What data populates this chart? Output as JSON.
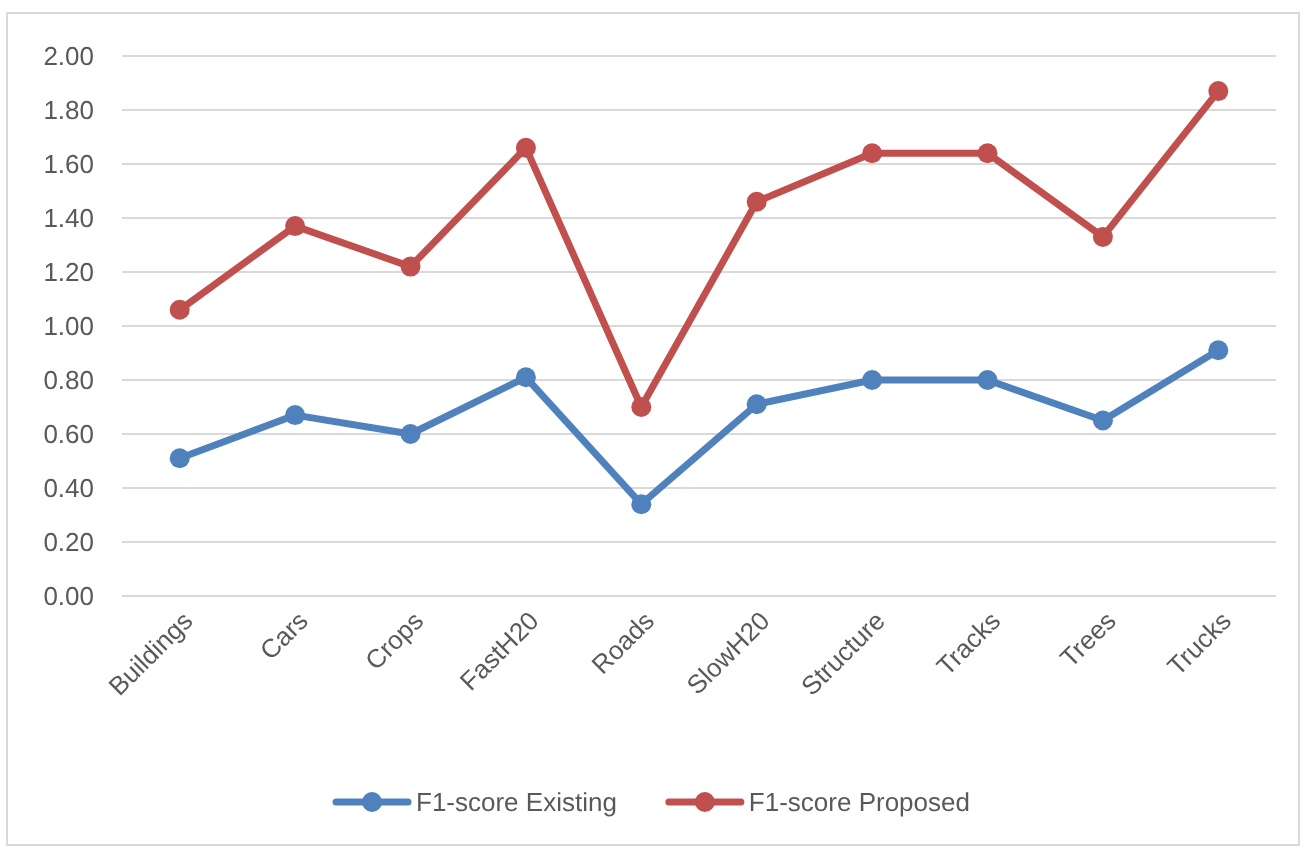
{
  "chart_data": {
    "type": "line",
    "categories": [
      "Buildings",
      "Cars",
      "Crops",
      "FastH20",
      "Roads",
      "SlowH20",
      "Structure",
      "Tracks",
      "Trees",
      "Trucks"
    ],
    "series": [
      {
        "name": "F1-score Existing",
        "color": "#4f81bd",
        "values": [
          0.51,
          0.67,
          0.6,
          0.81,
          0.34,
          0.71,
          0.8,
          0.8,
          0.65,
          0.91
        ]
      },
      {
        "name": "F1-score Proposed",
        "color": "#c0504d",
        "values": [
          1.06,
          1.37,
          1.22,
          1.66,
          0.7,
          1.46,
          1.64,
          1.64,
          1.33,
          1.87
        ]
      }
    ],
    "ylim": [
      0,
      2
    ],
    "yticks": [
      {
        "value": 0,
        "label": "0.00"
      },
      {
        "value": 0.2,
        "label": "0.20"
      },
      {
        "value": 0.4,
        "label": "0.40"
      },
      {
        "value": 0.6,
        "label": "0.60"
      },
      {
        "value": 0.8,
        "label": "0.80"
      },
      {
        "value": 1,
        "label": "1.00"
      },
      {
        "value": 1.2,
        "label": "1.20"
      },
      {
        "value": 1.4,
        "label": "1.40"
      },
      {
        "value": 1.6,
        "label": "1.60"
      },
      {
        "value": 1.8,
        "label": "1.80"
      },
      {
        "value": 2,
        "label": "2.00"
      }
    ],
    "grid": "y",
    "legend": "bottom",
    "marker": "circle",
    "line_style": "solid"
  }
}
